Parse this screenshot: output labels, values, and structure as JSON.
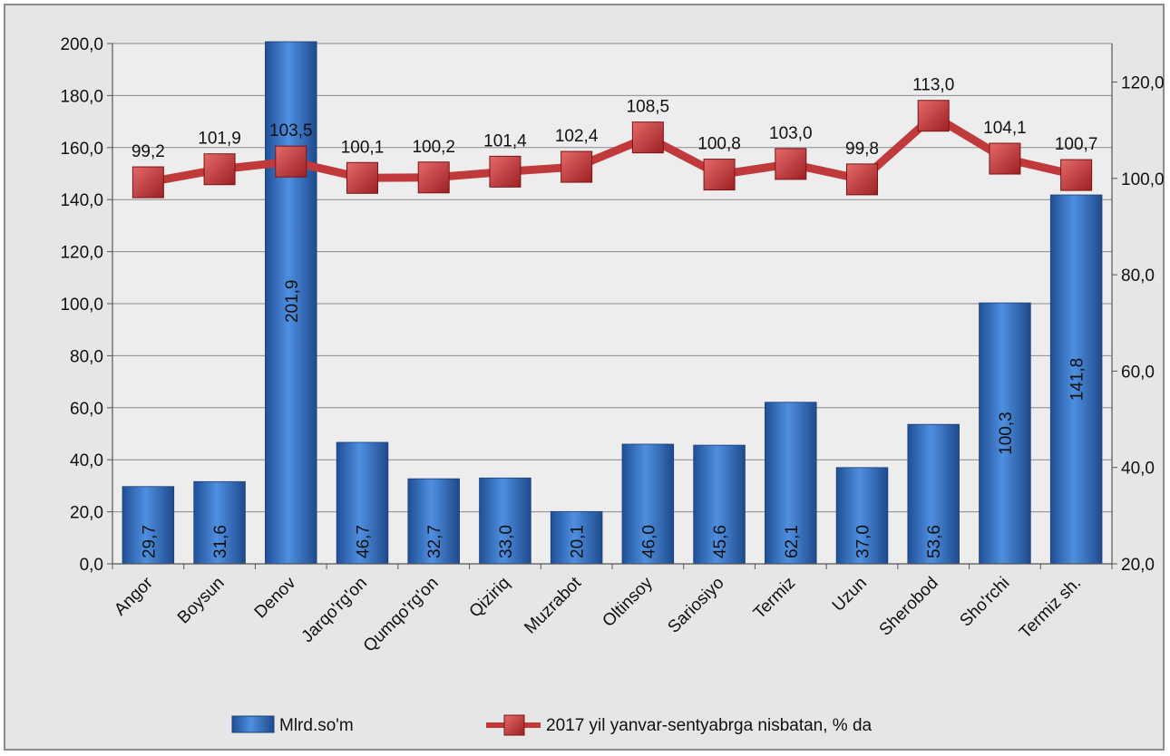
{
  "chart_data": {
    "type": "bar",
    "categories": [
      "Angor",
      "Boysun",
      "Denov",
      "Jarqo'rg'on",
      "Qumqo'rg'on",
      "Qiziriq",
      "Muzrabot",
      "Oltinsoy",
      "Sariosiyo",
      "Termiz",
      "Uzun",
      "Sherobod",
      "Sho'rchi",
      "Termiz sh."
    ],
    "series": [
      {
        "name": "Mlrd.so'm",
        "type": "bar",
        "axis": "left",
        "color": "#2e6fc4",
        "values": [
          29.7,
          31.6,
          201.9,
          46.7,
          32.7,
          33.0,
          20.1,
          46.0,
          45.6,
          62.1,
          37.0,
          53.6,
          100.3,
          141.8
        ],
        "labels": [
          "29,7",
          "31,6",
          "201,9",
          "46,7",
          "32,7",
          "33,0",
          "20,1",
          "46,0",
          "45,6",
          "62,1",
          "37,0",
          "53,6",
          "100,3",
          "141,8"
        ]
      },
      {
        "name": "2017 yil yanvar-sentyabrga nisbatan, % da",
        "type": "line",
        "axis": "right",
        "color": "#c0393b",
        "values": [
          99.2,
          101.9,
          103.5,
          100.1,
          100.2,
          101.4,
          102.4,
          108.5,
          100.8,
          103.0,
          99.8,
          113.0,
          104.1,
          100.7
        ],
        "labels": [
          "99,2",
          "101,9",
          "103,5",
          "100,1",
          "100,2",
          "101,4",
          "102,4",
          "108,5",
          "100,8",
          "103,0",
          "99,8",
          "113,0",
          "104,1",
          "100,7"
        ]
      }
    ],
    "y_left": {
      "ylim": [
        0,
        200
      ],
      "ticks": [
        0,
        20,
        40,
        60,
        80,
        100,
        120,
        140,
        160,
        180,
        200
      ],
      "tick_labels": [
        "0,0",
        "20,0",
        "40,0",
        "60,0",
        "80,0",
        "100,0",
        "120,0",
        "140,0",
        "160,0",
        "180,0",
        "200,0"
      ]
    },
    "y_right": {
      "ylim": [
        20,
        128
      ],
      "ticks": [
        20,
        40,
        60,
        80,
        100,
        120
      ],
      "tick_labels": [
        "20,0",
        "40,0",
        "60,0",
        "80,0",
        "100,0",
        "120,0"
      ]
    },
    "grid": true,
    "legend_position": "bottom"
  }
}
